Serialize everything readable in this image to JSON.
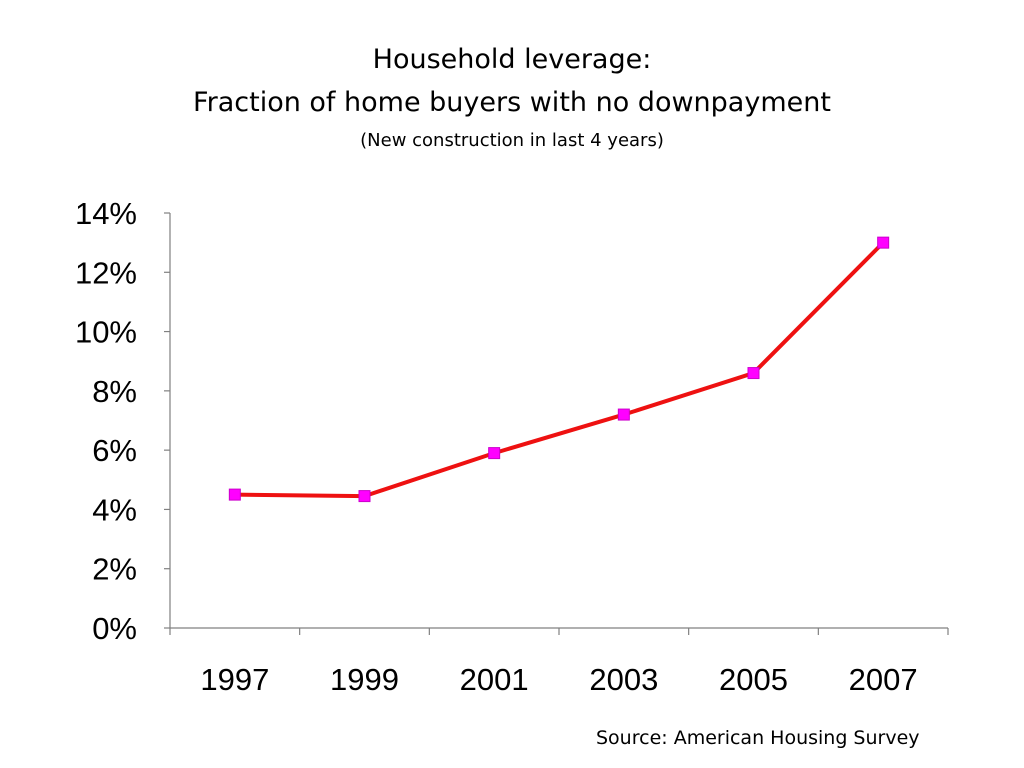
{
  "title_line1": "Household leverage:",
  "title_line2": "Fraction of home buyers with no downpayment",
  "subtitle": "(New construction in last 4 years)",
  "source": "Source: American Housing Survey",
  "chart_data": {
    "type": "line",
    "categories": [
      "1997",
      "1999",
      "2001",
      "2003",
      "2005",
      "2007"
    ],
    "series": [
      {
        "values": [
          4.5,
          4.45,
          5.9,
          7.2,
          8.6,
          13.0
        ],
        "line_color": "#ee1111",
        "marker_color": "#ff00ff",
        "marker": "square"
      }
    ],
    "yticks": [
      "0%",
      "2%",
      "4%",
      "6%",
      "8%",
      "10%",
      "12%",
      "14%"
    ],
    "ylim": [
      0,
      14
    ],
    "grid": false,
    "legend": "none"
  }
}
